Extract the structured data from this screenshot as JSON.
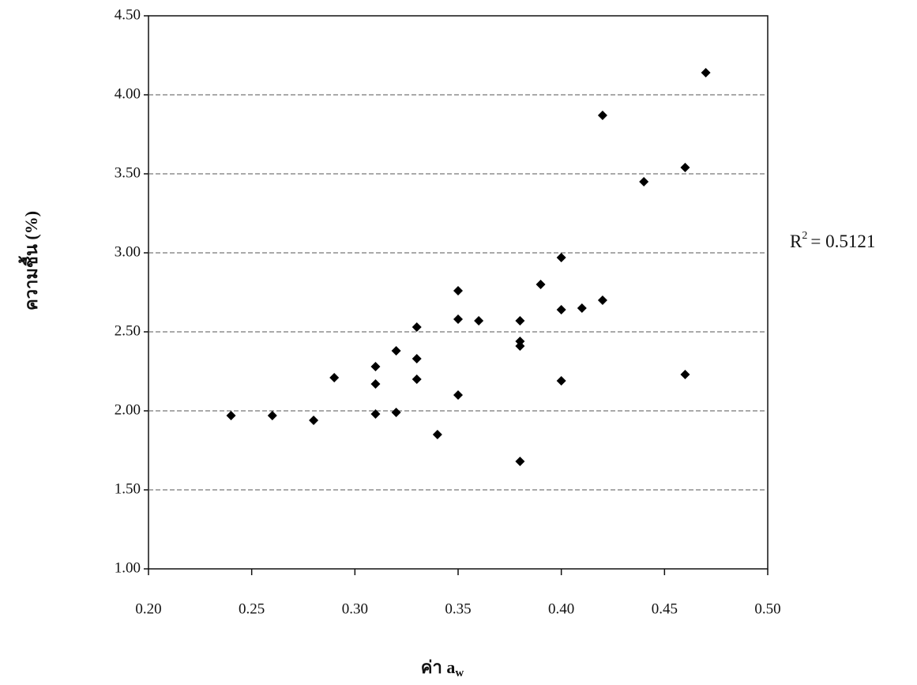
{
  "chart_data": {
    "type": "scatter",
    "y_label": "ความชื้น (%)",
    "x_label": "ค่า a",
    "x_label_sub": "w",
    "annotation": {
      "text": "R",
      "sup": "2",
      "rest": "= 0.5121"
    },
    "x": [
      0.24,
      0.26,
      0.28,
      0.29,
      0.31,
      0.31,
      0.31,
      0.32,
      0.32,
      0.33,
      0.33,
      0.33,
      0.34,
      0.35,
      0.35,
      0.35,
      0.36,
      0.38,
      0.38,
      0.38,
      0.38,
      0.39,
      0.4,
      0.4,
      0.4,
      0.41,
      0.42,
      0.42,
      0.44,
      0.46,
      0.46,
      0.47
    ],
    "series": [
      {
        "color": "#000000",
        "values": [
          1.97,
          1.97,
          1.94,
          2.21,
          2.28,
          2.17,
          1.98,
          2.38,
          1.99,
          2.53,
          2.33,
          2.2,
          1.85,
          2.76,
          2.58,
          2.1,
          2.57,
          2.57,
          2.44,
          2.41,
          1.68,
          2.8,
          2.97,
          2.64,
          2.19,
          2.65,
          2.7,
          3.87,
          3.45,
          3.54,
          2.23,
          4.14
        ]
      }
    ],
    "xlim": [
      0.2,
      0.5
    ],
    "xticks": [
      {
        "value": 0.2,
        "label": "0.20"
      },
      {
        "value": 0.25,
        "label": "0.25"
      },
      {
        "value": 0.3,
        "label": "0.30"
      },
      {
        "value": 0.35,
        "label": "0.35"
      },
      {
        "value": 0.4,
        "label": "0.40"
      },
      {
        "value": 0.45,
        "label": "0.45"
      },
      {
        "value": 0.5,
        "label": "0.50"
      }
    ],
    "ylim": [
      1,
      4.5
    ],
    "yticks": [
      {
        "value": 1,
        "label": "1.00"
      },
      {
        "value": 1.5,
        "label": "1.50"
      },
      {
        "value": 2,
        "label": "2.00"
      },
      {
        "value": 2.5,
        "label": "2.50"
      },
      {
        "value": 3,
        "label": "3.00"
      },
      {
        "value": 3.5,
        "label": "3.50"
      },
      {
        "value": 4,
        "label": "4.00"
      },
      {
        "value": 4.5,
        "label": "4.50"
      }
    ],
    "grid": true
  }
}
